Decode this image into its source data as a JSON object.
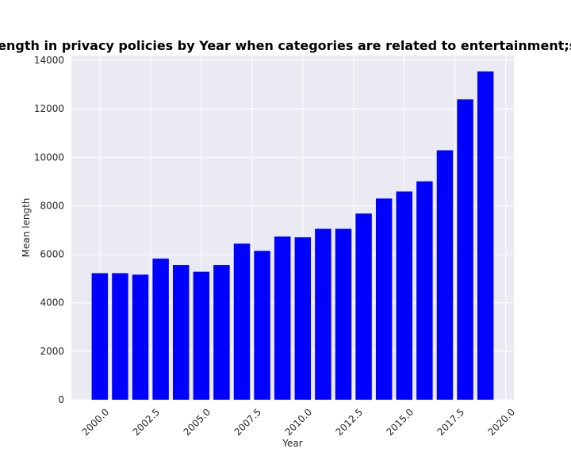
{
  "chart_data": {
    "type": "bar",
    "title": "Mean length in privacy policies by Year when categories are related to entertainment;shopping",
    "xlabel": "Year",
    "ylabel": "Mean length",
    "x": [
      2000,
      2001,
      2002,
      2003,
      2004,
      2005,
      2006,
      2007,
      2008,
      2009,
      2010,
      2011,
      2012,
      2013,
      2014,
      2015,
      2016,
      2017,
      2018,
      2019
    ],
    "values": [
      5220,
      5220,
      5160,
      5820,
      5560,
      5280,
      5560,
      6440,
      6140,
      6730,
      6700,
      7050,
      7050,
      7680,
      8300,
      8590,
      9010,
      10290,
      12390,
      13540
    ],
    "series_color": "#0000ff",
    "xlim": [
      1998.6,
      2020.4
    ],
    "ylim": [
      0,
      14200
    ],
    "x_ticks": [
      2000.0,
      2002.5,
      2005.0,
      2007.5,
      2010.0,
      2012.5,
      2015.0,
      2017.5,
      2020.0
    ],
    "x_tick_labels": [
      "2000.0",
      "2002.5",
      "2005.0",
      "2007.5",
      "2010.0",
      "2012.5",
      "2015.0",
      "2017.5",
      "2020.0"
    ],
    "y_ticks": [
      0,
      2000,
      4000,
      6000,
      8000,
      10000,
      12000,
      14000
    ],
    "y_tick_labels": [
      "0",
      "2000",
      "4000",
      "6000",
      "8000",
      "10000",
      "12000",
      "14000"
    ],
    "grid": true,
    "background": "#eaeaf2"
  }
}
